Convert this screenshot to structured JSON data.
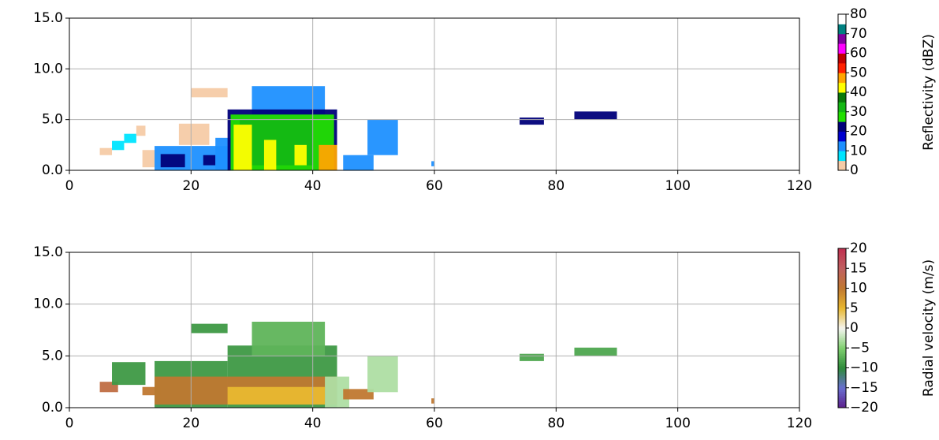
{
  "chart_data": [
    {
      "type": "heatmap",
      "xlim": [
        0,
        120
      ],
      "ylim": [
        0,
        15
      ],
      "xticks": [
        0,
        20,
        40,
        60,
        80,
        100,
        120
      ],
      "yticks": [
        {
          "value": 0,
          "label": "0.0"
        },
        {
          "value": 5,
          "label": "5.0"
        },
        {
          "value": 10,
          "label": "10.0"
        },
        {
          "value": 15,
          "label": "15.0"
        }
      ],
      "grid": true,
      "colorbar": {
        "label": "Reflectivity (dBZ)",
        "lim": [
          0,
          80
        ],
        "ticks": [
          0,
          10,
          20,
          30,
          40,
          50,
          60,
          70,
          80
        ],
        "discrete": true,
        "colors": [
          "#f5cba7",
          "#00e5ff",
          "#1e90ff",
          "#0000d0",
          "#00007a",
          "#22e000",
          "#14b814",
          "#0a7a0a",
          "#ffff00",
          "#ffa500",
          "#ff2000",
          "#c00000",
          "#ff00ff",
          "#8000a0",
          "#008080",
          "#ffffff"
        ]
      },
      "cells": [
        {
          "x": [
            5,
            7
          ],
          "y": [
            1.5,
            2.2
          ],
          "value": 3
        },
        {
          "x": [
            7,
            9
          ],
          "y": [
            2.0,
            2.9
          ],
          "value": 8
        },
        {
          "x": [
            9,
            11
          ],
          "y": [
            2.7,
            3.6
          ],
          "value": 8
        },
        {
          "x": [
            11,
            12.5
          ],
          "y": [
            3.4,
            4.4
          ],
          "value": 3
        },
        {
          "x": [
            12,
            15
          ],
          "y": [
            0.3,
            2
          ],
          "value": 3
        },
        {
          "x": [
            18,
            23
          ],
          "y": [
            2.5,
            4.6
          ],
          "value": 3
        },
        {
          "x": [
            20,
            26
          ],
          "y": [
            7.2,
            8.1
          ],
          "value": 3
        },
        {
          "x": [
            14,
            26
          ],
          "y": [
            0,
            2.4
          ],
          "value": 12
        },
        {
          "x": [
            15,
            19
          ],
          "y": [
            0.3,
            1.6
          ],
          "value": 22
        },
        {
          "x": [
            22,
            24
          ],
          "y": [
            0.5,
            1.5
          ],
          "value": 22
        },
        {
          "x": [
            24,
            27
          ],
          "y": [
            0,
            3.2
          ],
          "value": 12
        },
        {
          "x": [
            30,
            42
          ],
          "y": [
            5,
            8.3
          ],
          "value": 12
        },
        {
          "x": [
            26,
            44
          ],
          "y": [
            0,
            6
          ],
          "value": 22
        },
        {
          "x": [
            26.5,
            43.5
          ],
          "y": [
            0,
            5.5
          ],
          "value": 27
        },
        {
          "x": [
            28,
            40
          ],
          "y": [
            0.5,
            5
          ],
          "value": 33
        },
        {
          "x": [
            27,
            30
          ],
          "y": [
            0,
            4.5
          ],
          "value": 42
        },
        {
          "x": [
            32,
            34
          ],
          "y": [
            0,
            3
          ],
          "value": 42
        },
        {
          "x": [
            37,
            39
          ],
          "y": [
            0.5,
            2.5
          ],
          "value": 42
        },
        {
          "x": [
            41,
            44
          ],
          "y": [
            0,
            2.5
          ],
          "value": 47
        },
        {
          "x": [
            45,
            50
          ],
          "y": [
            0,
            1.5
          ],
          "value": 12
        },
        {
          "x": [
            49,
            54
          ],
          "y": [
            1.5,
            5
          ],
          "value": 12
        },
        {
          "x": [
            59.5,
            60
          ],
          "y": [
            0.4,
            0.9
          ],
          "value": 12
        },
        {
          "x": [
            74,
            78
          ],
          "y": [
            4.5,
            5.2
          ],
          "value": 22
        },
        {
          "x": [
            83,
            90
          ],
          "y": [
            5,
            5.8
          ],
          "value": 22
        }
      ]
    },
    {
      "type": "heatmap",
      "xlim": [
        0,
        120
      ],
      "ylim": [
        0,
        15
      ],
      "xticks": [
        0,
        20,
        40,
        60,
        80,
        100,
        120
      ],
      "yticks": [
        {
          "value": 0,
          "label": "0.0"
        },
        {
          "value": 5,
          "label": "5.0"
        },
        {
          "value": 10,
          "label": "10.0"
        },
        {
          "value": 15,
          "label": "15.0"
        }
      ],
      "grid": true,
      "colorbar": {
        "label": "Radial velocity (m/s)",
        "lim": [
          -20,
          20
        ],
        "discrete": false,
        "ticks": [
          {
            "value": -20,
            "label": "−20"
          },
          {
            "value": -15,
            "label": "−15"
          },
          {
            "value": -10,
            "label": "−10"
          },
          {
            "value": -5,
            "label": "−5"
          },
          0,
          5,
          10,
          15,
          20
        ],
        "colors": [
          "#5b1f8a",
          "#6a6fd0",
          "#2e8b3a",
          "#7fcf6f",
          "#f5f5f0",
          "#e8b830",
          "#c07830",
          "#c06060",
          "#c03050"
        ]
      },
      "cells": [
        {
          "x": [
            5,
            8
          ],
          "y": [
            1.5,
            2.5
          ],
          "value": 12
        },
        {
          "x": [
            7,
            12.5
          ],
          "y": [
            2.2,
            4.4
          ],
          "value": -9
        },
        {
          "x": [
            12,
            15
          ],
          "y": [
            1.2,
            2
          ],
          "value": 10
        },
        {
          "x": [
            14,
            26
          ],
          "y": [
            0,
            4.5
          ],
          "value": -9
        },
        {
          "x": [
            20,
            26
          ],
          "y": [
            7.2,
            8.1
          ],
          "value": -9
        },
        {
          "x": [
            26,
            44
          ],
          "y": [
            0,
            6
          ],
          "value": -9
        },
        {
          "x": [
            30,
            42
          ],
          "y": [
            5,
            8.3
          ],
          "value": -7
        },
        {
          "x": [
            14,
            44
          ],
          "y": [
            0.3,
            3
          ],
          "value": 10
        },
        {
          "x": [
            26,
            42
          ],
          "y": [
            0.3,
            2
          ],
          "value": 5
        },
        {
          "x": [
            42,
            46
          ],
          "y": [
            0,
            3
          ],
          "value": -3
        },
        {
          "x": [
            45,
            50
          ],
          "y": [
            0.8,
            1.8
          ],
          "value": 10
        },
        {
          "x": [
            49,
            54
          ],
          "y": [
            1.5,
            5
          ],
          "value": -3
        },
        {
          "x": [
            59.5,
            60
          ],
          "y": [
            0.4,
            0.9
          ],
          "value": 10
        },
        {
          "x": [
            74,
            78
          ],
          "y": [
            4.5,
            5.2
          ],
          "value": -8
        },
        {
          "x": [
            83,
            90
          ],
          "y": [
            5,
            5.8
          ],
          "value": -8
        }
      ]
    }
  ]
}
